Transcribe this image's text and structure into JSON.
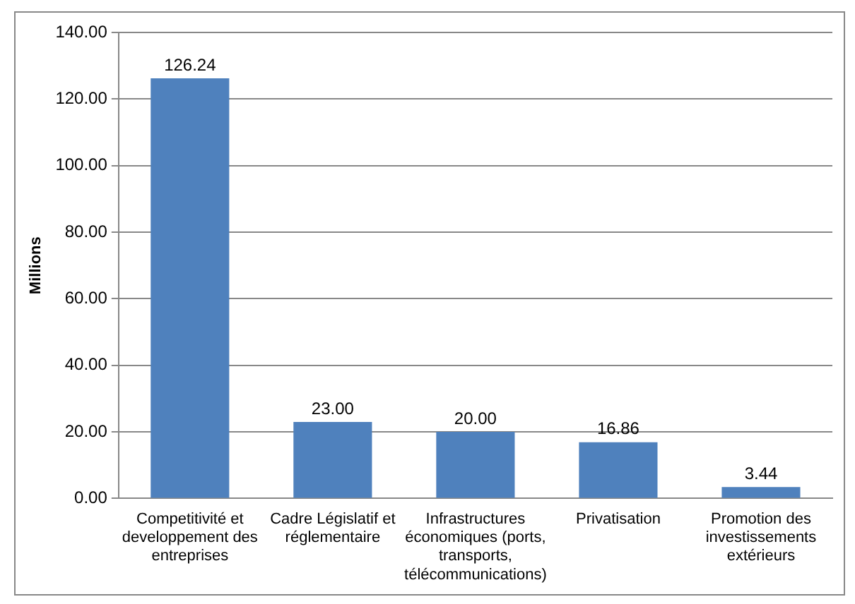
{
  "chart_data": {
    "type": "bar",
    "ylabel": "Millions",
    "categories": [
      "Competitivité et developpement des entreprises",
      "Cadre Législatif et réglementaire",
      "Infrastructures économiques (ports, transports, télécommunications)",
      "Privatisation",
      "Promotion des investissements extérieurs"
    ],
    "values": [
      126.24,
      23.0,
      20.0,
      16.86,
      3.44
    ],
    "value_labels": [
      "126.24",
      "23.00",
      "20.00",
      "16.86",
      "3.44"
    ],
    "color": "#4f81bd",
    "ylim": [
      0,
      140
    ],
    "yticks": [
      {
        "value": 0,
        "label": "0.00"
      },
      {
        "value": 20,
        "label": "20.00"
      },
      {
        "value": 40,
        "label": "40.00"
      },
      {
        "value": 60,
        "label": "60.00"
      },
      {
        "value": 80,
        "label": "80.00"
      },
      {
        "value": 100,
        "label": "100.00"
      },
      {
        "value": 120,
        "label": "120.00"
      },
      {
        "value": 140,
        "label": "140.00"
      }
    ],
    "grid": "y",
    "legend": false
  }
}
